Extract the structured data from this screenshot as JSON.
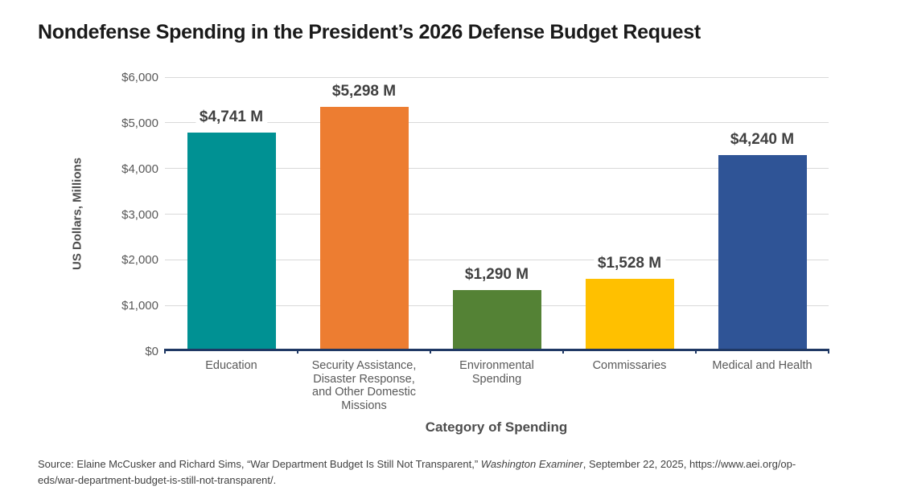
{
  "title": "Nondefense Spending in the President’s 2026 Defense Budget Request",
  "chart_data": {
    "type": "bar",
    "title": "Nondefense Spending in the President’s 2026 Defense Budget Request",
    "categories": [
      "Education",
      "Security Assistance, Disaster Response, and Other Domestic Missions",
      "Environmental Spending",
      "Commissaries",
      "Medical and Health"
    ],
    "category_slugs": [
      "education",
      "security-assistance-disaster-response-and-other-domestic-missions",
      "environmental-spending",
      "commissaries",
      "medical-and-health"
    ],
    "values": [
      4741,
      5298,
      1290,
      1528,
      4240
    ],
    "value_labels": [
      "$4,741 M",
      "$5,298 M",
      "$1,290 M",
      "$1,528 M",
      "$4,240 M"
    ],
    "bar_colors": [
      "#009193",
      "#ED7D31",
      "#548235",
      "#FFC000",
      "#2F5496"
    ],
    "xlabel": "Category of Spending",
    "ylabel": "US Dollars, Millions",
    "ylim": [
      0,
      6000
    ],
    "ytick_interval": 1000,
    "ytick_labels": [
      "$0",
      "$1,000",
      "$2,000",
      "$3,000",
      "$4,000",
      "$5,000",
      "$6,000"
    ],
    "grid": true,
    "legend": "none",
    "axis_color": "#1F3864",
    "gridline_color": "#D9D9D9"
  },
  "source": {
    "prefix": "Source: Elaine McCusker and Richard Sims, “War Department Budget Is Still Not Transparent,” ",
    "italic": "Washington Examiner",
    "suffix": ", September 22, 2025, https://www.aei.org/op-eds/war-department-budget-is-still-not-transparent/."
  }
}
